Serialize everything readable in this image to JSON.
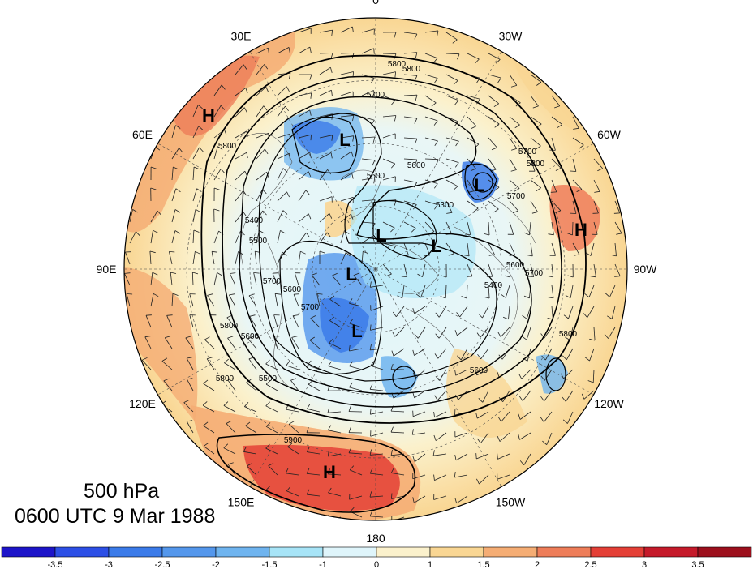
{
  "title": {
    "level": "500 hPa",
    "time": "0600 UTC 9 Mar 1988"
  },
  "longitude_labels": [
    {
      "text": "0",
      "lon": 0
    },
    {
      "text": "30W",
      "lon": -30
    },
    {
      "text": "60W",
      "lon": -60
    },
    {
      "text": "90W",
      "lon": -90
    },
    {
      "text": "120W",
      "lon": -120
    },
    {
      "text": "150W",
      "lon": -150
    },
    {
      "text": "180",
      "lon": 180
    },
    {
      "text": "150E",
      "lon": 150
    },
    {
      "text": "120E",
      "lon": 120
    },
    {
      "text": "90E",
      "lon": 90
    },
    {
      "text": "60E",
      "lon": 60
    },
    {
      "text": "30E",
      "lon": 30
    }
  ],
  "pressure_centers": [
    {
      "label": "H",
      "type": "high"
    },
    {
      "label": "H",
      "type": "high"
    },
    {
      "label": "H",
      "type": "high"
    },
    {
      "label": "L",
      "type": "low"
    },
    {
      "label": "L",
      "type": "low"
    },
    {
      "label": "L",
      "type": "low"
    },
    {
      "label": "L",
      "type": "low"
    },
    {
      "label": "L",
      "type": "low"
    },
    {
      "label": "L",
      "type": "low"
    }
  ],
  "contour_labels": [
    "5800",
    "5800",
    "5700",
    "5800",
    "5600",
    "5500",
    "5300",
    "5400",
    "5700",
    "5500",
    "5600",
    "5700",
    "5800",
    "5800",
    "5600",
    "5500",
    "5600",
    "5800",
    "5900",
    "5700",
    "5600",
    "5400",
    "5700",
    "5700",
    "5800"
  ],
  "colorbar": {
    "ticks": [
      "-3.5",
      "-3",
      "-2.5",
      "-2",
      "-1.5",
      "-1",
      "0",
      "1",
      "1.5",
      "2",
      "2.5",
      "3",
      "3.5"
    ],
    "colors": [
      "#1d14c9",
      "#2c4fe6",
      "#3b7be9",
      "#5497ec",
      "#6fb4ef",
      "#a7e4f7",
      "#dff5fb",
      "#fbf1cc",
      "#f9d693",
      "#f5ad74",
      "#ee7d59",
      "#e43f36",
      "#c51a2a",
      "#9c0f1c"
    ]
  }
}
